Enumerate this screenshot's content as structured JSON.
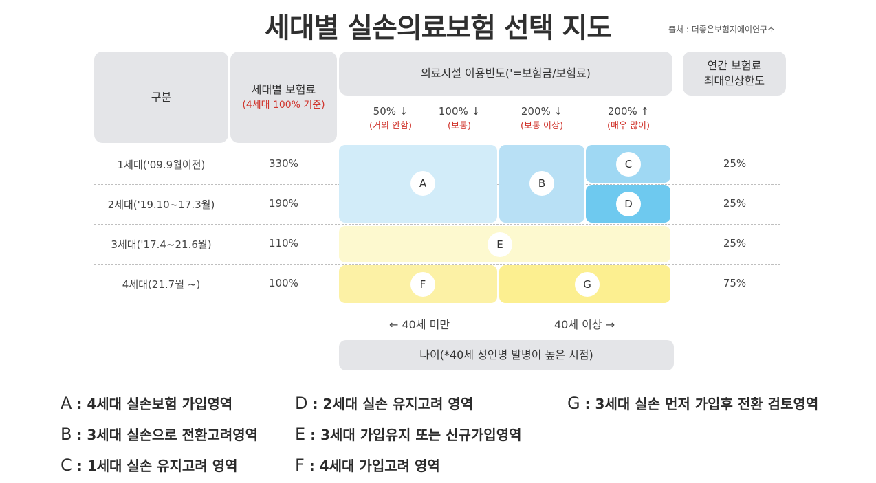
{
  "title": "세대별 실손의료보험 선택 지도",
  "source": "출처 :  더좋은보험지에이연구소",
  "headers": {
    "category": "구분",
    "premium_line1": "세대별 보험료",
    "premium_line2": "(4세대 100% 기준)",
    "frequency": "의료시설 이용빈도('=보험금/보험료)",
    "max_increase_line1": "연간 보험료",
    "max_increase_line2": "최대인상한도"
  },
  "frequency_levels": [
    {
      "value": "50% ↓",
      "desc": "(거의 안함)"
    },
    {
      "value": "100% ↓",
      "desc": "(보통)"
    },
    {
      "value": "200% ↓",
      "desc": "(보통 이상)"
    },
    {
      "value": "200% ↑",
      "desc": "(매우 많이)"
    }
  ],
  "rows": [
    {
      "label": "1세대('09.9월이전)",
      "premium": "330%",
      "max_increase": "25%"
    },
    {
      "label": "2세대('19.10~17.3월)",
      "premium": "190%",
      "max_increase": "25%"
    },
    {
      "label": "3세대('17.4~21.6월)",
      "premium": "110%",
      "max_increase": "25%"
    },
    {
      "label": "4세대(21.7월 ~)",
      "premium": "100%",
      "max_increase": "75%"
    }
  ],
  "zones": {
    "A": "A",
    "B": "B",
    "C": "C",
    "D": "D",
    "E": "E",
    "F": "F",
    "G": "G"
  },
  "zone_colors": {
    "A": "#d2ecf9",
    "B": "#b8e0f5",
    "C": "#9fd8f3",
    "D": "#6ec9ef",
    "E": "#fdf9cf",
    "F": "#fcf1a5",
    "G": "#fcef90"
  },
  "age": {
    "under": "←  40세 미만",
    "over": "40세 이상  →",
    "label": "나이(*40세 성인병 발병이 높은 시점)"
  },
  "legend": [
    {
      "key": "A",
      "text": " : 4세대 실손보험 가입영역"
    },
    {
      "key": "B",
      "text": " : 3세대 실손으로 전환고려영역"
    },
    {
      "key": "C",
      "text": " : 1세대 실손 유지고려 영역"
    },
    {
      "key": "D",
      "text": " : 2세대 실손 유지고려 영역"
    },
    {
      "key": "E",
      "text": " :  3세대 가입유지 또는 신규가입영역"
    },
    {
      "key": "F",
      "text": " :  4세대 가입고려 영역"
    },
    {
      "key": "G",
      "text": " : 3세대 실손 먼저 가입후 전환 검토영역"
    }
  ]
}
